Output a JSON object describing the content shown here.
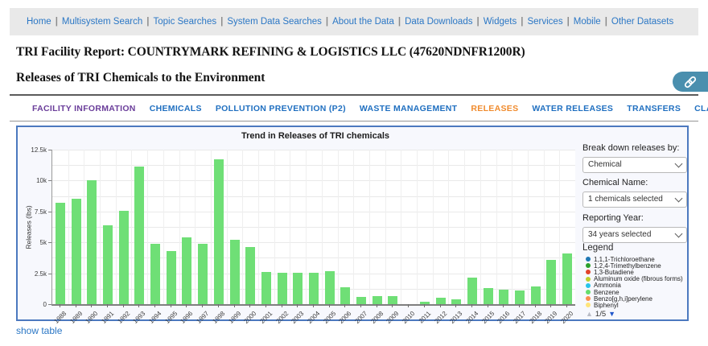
{
  "nav": {
    "items": [
      "Home",
      "Multisystem Search",
      "Topic Searches",
      "System Data Searches",
      "About the Data",
      "Data Downloads",
      "Widgets",
      "Services",
      "Mobile",
      "Other Datasets"
    ],
    "link_color": "#2b77c5"
  },
  "header": {
    "title": "TRI Facility Report: COUNTRYMARK REFINING & LOGISTICS LLC (47620NDNFR1200R)",
    "subtitle": "Releases of TRI Chemicals to the Environment",
    "share_icon": "link-icon",
    "share_button_color": "#4a8fae"
  },
  "tabs": {
    "colors": {
      "visited": "#6a3d9a",
      "normal": "#1f6fc0",
      "active": "#f08b2d"
    },
    "items": [
      {
        "label": "FACILITY INFORMATION",
        "state": "visited"
      },
      {
        "label": "CHEMICALS",
        "state": "normal"
      },
      {
        "label": "POLLUTION PREVENTION (P2)",
        "state": "normal"
      },
      {
        "label": "WASTE MANAGEMENT",
        "state": "normal"
      },
      {
        "label": "RELEASES",
        "state": "active"
      },
      {
        "label": "WATER RELEASES",
        "state": "normal"
      },
      {
        "label": "TRANSFERS",
        "state": "normal"
      },
      {
        "label": "CLASSIC VIEW",
        "state": "normal"
      }
    ]
  },
  "chart_data": {
    "type": "bar",
    "title": "Trend in Releases of TRI chemicals",
    "xlabel": "",
    "ylabel": "Releases (lbs)",
    "ylim": [
      0,
      12500
    ],
    "grid": true,
    "grid_step": 1250,
    "legend_position": "right",
    "bar_color": "#6fdf76",
    "yticks": [
      {
        "value": 0,
        "label": "0"
      },
      {
        "value": 2500,
        "label": "2.5k"
      },
      {
        "value": 5000,
        "label": "5k"
      },
      {
        "value": 7500,
        "label": "7.5k"
      },
      {
        "value": 10000,
        "label": "10k"
      },
      {
        "value": 12500,
        "label": "12.5k"
      }
    ],
    "categories": [
      "1988",
      "1989",
      "1990",
      "1991",
      "1992",
      "1993",
      "1994",
      "1995",
      "1996",
      "1997",
      "1998",
      "1999",
      "2000",
      "2001",
      "2002",
      "2003",
      "2004",
      "2005",
      "2006",
      "2007",
      "2008",
      "2009",
      "2010",
      "2011",
      "2012",
      "2013",
      "2014",
      "2015",
      "2016",
      "2017",
      "2018",
      "2019",
      "2020"
    ],
    "values": [
      8200,
      8500,
      10000,
      6400,
      7550,
      11150,
      4900,
      4300,
      5400,
      4900,
      11750,
      5200,
      4650,
      2600,
      2550,
      2550,
      2550,
      2650,
      1350,
      600,
      620,
      650,
      0,
      180,
      550,
      400,
      2150,
      1300,
      1150,
      1100,
      1450,
      3550,
      4100
    ]
  },
  "panel": {
    "breakdown": {
      "label": "Break down releases by:",
      "value": "Chemical"
    },
    "chemical": {
      "label": "Chemical Name:",
      "value": "1 chemicals selected"
    },
    "year": {
      "label": "Reporting Year:",
      "value": "34 years selected"
    },
    "legend": {
      "title": "Legend",
      "items": [
        {
          "label": "1,1,1-Trichloroethane",
          "color": "#1f77b4"
        },
        {
          "label": "1,2,4-Trimethylbenzene",
          "color": "#2ca02c"
        },
        {
          "label": "1,3-Butadiene",
          "color": "#e2422b"
        },
        {
          "label": "Aluminum oxide (fibrous forms)",
          "color": "#bfce2c"
        },
        {
          "label": "Ammonia",
          "color": "#27c4ea"
        },
        {
          "label": "Benzene",
          "color": "#66dd6c"
        },
        {
          "label": "Benzo[g,h,i]perylene",
          "color": "#fb8d4e"
        },
        {
          "label": "Biphenyl",
          "color": "#ffe47a"
        }
      ],
      "pagination": {
        "page": "1/5",
        "up_color": "#b9bcc6",
        "down_color": "#2157cc"
      }
    }
  },
  "footer": {
    "show_table_label": "show table"
  }
}
